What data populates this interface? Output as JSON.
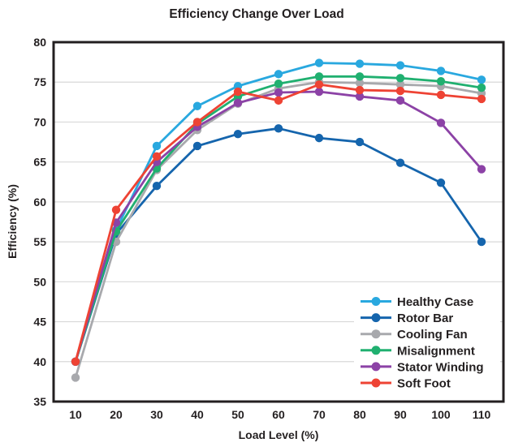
{
  "chart_data": {
    "type": "line",
    "title": "Efficiency Change Over Load",
    "xlabel": "Load Level (%)",
    "ylabel": "Efficiency (%)",
    "x": [
      10,
      20,
      30,
      40,
      50,
      60,
      70,
      80,
      90,
      100,
      110
    ],
    "xticks": [
      10,
      20,
      30,
      40,
      50,
      60,
      70,
      80,
      90,
      100,
      110
    ],
    "yticks": [
      35,
      40,
      45,
      50,
      55,
      60,
      65,
      70,
      75,
      80
    ],
    "ylim": [
      35,
      80
    ],
    "grid": "horizontal",
    "legend_position": "lower right",
    "frame_color": "#231f20",
    "gridline_color": "#d8d8d8",
    "series": [
      {
        "name": "Healthy Case",
        "color": "#29a8df",
        "values": [
          40.0,
          56.5,
          67.0,
          72.0,
          74.5,
          76.0,
          77.4,
          77.3,
          77.1,
          76.4,
          75.3
        ]
      },
      {
        "name": "Rotor Bar",
        "color": "#1565ad",
        "values": [
          40.0,
          56.0,
          62.0,
          67.0,
          68.5,
          69.2,
          68.0,
          67.5,
          64.9,
          62.4,
          55.0
        ]
      },
      {
        "name": "Cooling Fan",
        "color": "#a8a9ad",
        "values": [
          38.0,
          55.0,
          64.0,
          69.0,
          72.3,
          74.2,
          75.0,
          74.9,
          74.7,
          74.5,
          73.6
        ]
      },
      {
        "name": "Misalignment",
        "color": "#20b070",
        "values": [
          40.0,
          56.3,
          64.2,
          69.8,
          73.2,
          74.8,
          75.7,
          75.7,
          75.5,
          75.1,
          74.3
        ]
      },
      {
        "name": "Stator Winding",
        "color": "#8c42a6",
        "values": [
          40.0,
          57.4,
          65.0,
          69.4,
          72.4,
          73.7,
          73.8,
          73.2,
          72.7,
          69.9,
          64.1
        ]
      },
      {
        "name": "Soft Foot",
        "color": "#ee4334",
        "values": [
          40.0,
          59.0,
          65.7,
          70.0,
          73.8,
          72.7,
          74.7,
          74.0,
          73.9,
          73.4,
          72.9
        ]
      }
    ]
  }
}
